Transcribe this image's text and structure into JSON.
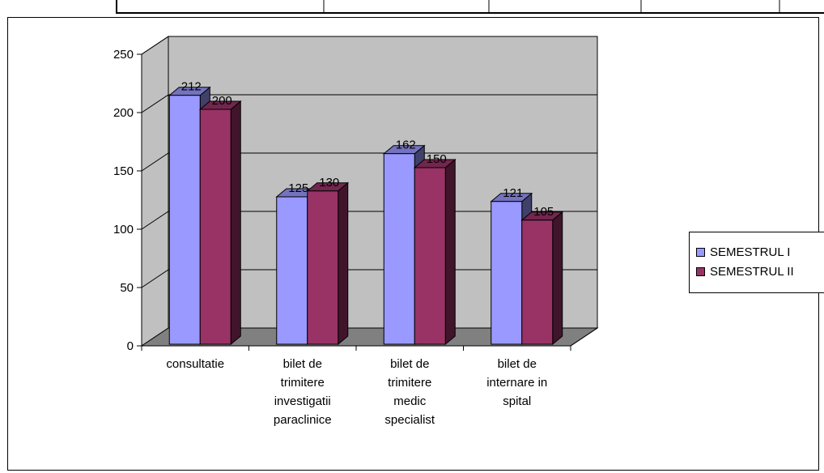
{
  "chart_data": {
    "type": "bar",
    "categories": [
      [
        "consultatie"
      ],
      [
        "bilet de",
        "trimitere",
        "investigatii",
        "paraclinice"
      ],
      [
        "bilet de",
        "trimitere",
        "medic",
        "specialist"
      ],
      [
        "bilet de",
        "internare in",
        "spital"
      ]
    ],
    "series": [
      {
        "name": "SEMESTRUL I",
        "values": [
          212,
          125,
          162,
          121
        ],
        "color": "#9999ff"
      },
      {
        "name": "SEMESTRUL II",
        "values": [
          200,
          130,
          150,
          105
        ],
        "color": "#993366"
      }
    ],
    "ylim": [
      0,
      250
    ],
    "yticks": [
      0,
      50,
      100,
      150,
      200,
      250
    ],
    "grid": true,
    "legend": "right",
    "three_d": true,
    "wall_color": "#c0c0c0",
    "floor_color": "#808080"
  }
}
